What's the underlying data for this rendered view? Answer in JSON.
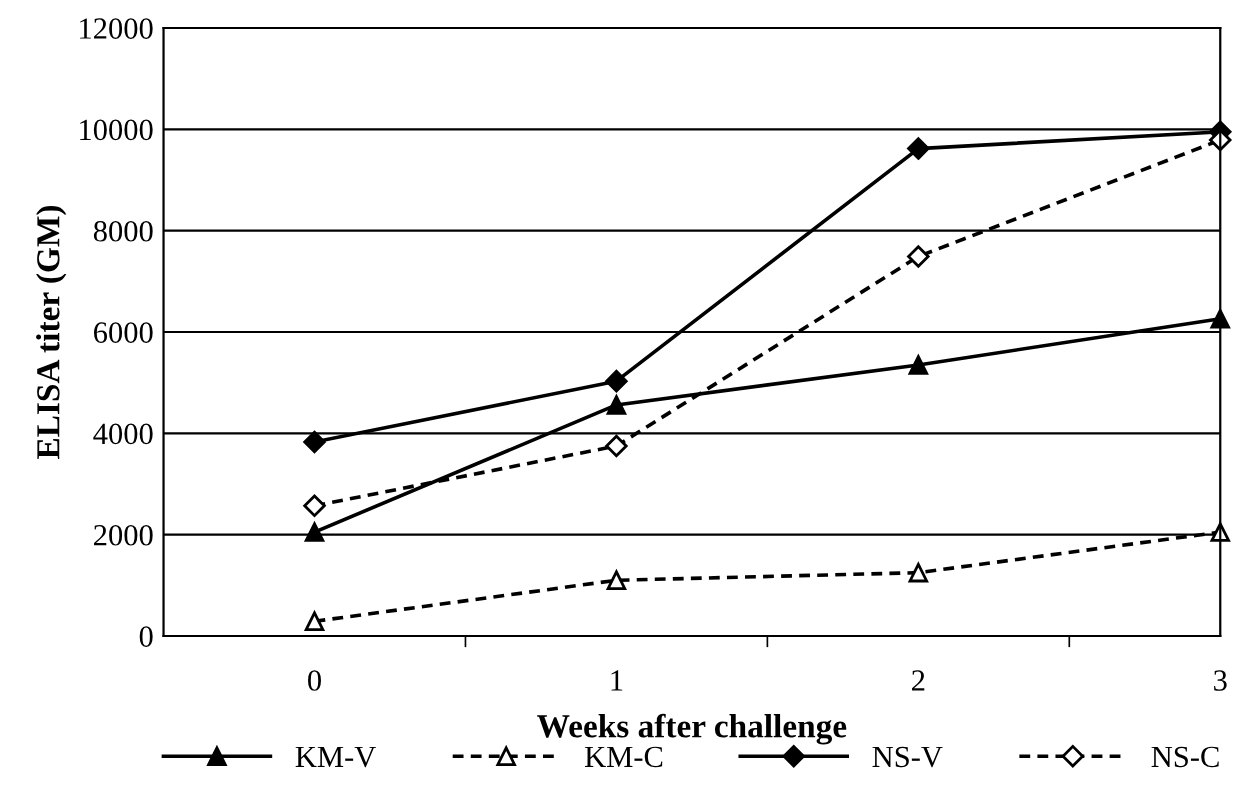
{
  "chart_data": {
    "type": "line",
    "xlabel": "Weeks after challenge",
    "ylabel": "ELISA titer (GM)",
    "x": [
      0,
      1,
      2,
      3
    ],
    "xlim": [
      -0.5,
      3
    ],
    "xticks": [
      0,
      1,
      2,
      3,
      {
        "value": 0.5,
        "label": null
      },
      {
        "value": 1.5,
        "label": null
      },
      {
        "value": 2.5,
        "label": null
      }
    ],
    "ylim": [
      0,
      12000
    ],
    "yticks": [
      0,
      2000,
      4000,
      6000,
      8000,
      10000,
      12000
    ],
    "grid": "y",
    "legend": "bottom",
    "series": [
      {
        "name": "KM-V",
        "color": "#000000",
        "marker": "triangle",
        "line_style": "solid",
        "values": [
          2050,
          4560,
          5350,
          6260
        ]
      },
      {
        "name": "KM-C",
        "color": "#000000",
        "marker": "triangle",
        "line_style": "dashed",
        "values": [
          290,
          1100,
          1250,
          2050
        ]
      },
      {
        "name": "NS-V",
        "color": "#000000",
        "marker": "diamond",
        "line_style": "solid",
        "values": [
          3830,
          5030,
          9620,
          9950
        ]
      },
      {
        "name": "NS-C",
        "color": "#000000",
        "marker": "diamond",
        "line_style": "dashed",
        "values": [
          2570,
          3750,
          7490,
          9790
        ]
      }
    ]
  }
}
